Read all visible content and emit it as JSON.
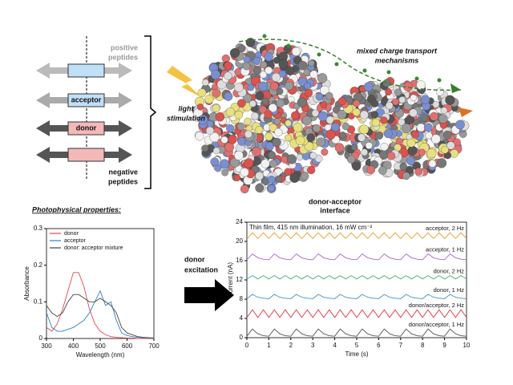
{
  "diagram": {
    "positive_peptides": [
      "positive",
      "peptides"
    ],
    "acceptor": "acceptor",
    "donor": "donor",
    "negative_peptides": [
      "negative",
      "peptides"
    ],
    "light_stimulation": [
      "light",
      "stimulation"
    ],
    "transport": [
      "mixed charge transport",
      "mechanisms"
    ],
    "interface": [
      "donor-acceptor",
      "interface"
    ],
    "section": "Photophysical properties:",
    "excitation": [
      "donor",
      "excitation"
    ]
  },
  "chart_data": [
    {
      "type": "line",
      "xlabel": "Wavelength (nm)",
      "ylabel": "Absorbance",
      "legend": "upper left",
      "x": [
        300,
        320,
        340,
        360,
        380,
        400,
        420,
        440,
        460,
        480,
        500,
        520,
        540,
        560,
        580,
        600,
        620,
        640,
        660,
        680,
        700
      ],
      "xlim": [
        300,
        700
      ],
      "xticks": [
        300,
        400,
        500,
        600,
        700
      ],
      "ylim": [
        0,
        0.3
      ],
      "yticks": [
        0,
        0.1,
        0.2,
        0.3
      ],
      "series": [
        {
          "name": "donor",
          "color": "#e8464a",
          "values": [
            0.03,
            0.02,
            0.04,
            0.08,
            0.13,
            0.18,
            0.18,
            0.14,
            0.08,
            0.04,
            0.02,
            0.01,
            0.005,
            0.003,
            0.002,
            0.001,
            0.001,
            0,
            0,
            0,
            0
          ]
        },
        {
          "name": "acceptor",
          "color": "#2f7fc8",
          "values": [
            0.07,
            0.03,
            0.02,
            0.02,
            0.025,
            0.03,
            0.04,
            0.05,
            0.07,
            0.1,
            0.13,
            0.09,
            0.1,
            0.05,
            0.015,
            0.008,
            0.005,
            0.003,
            0.002,
            0.001,
            0.001
          ]
        },
        {
          "name": "donor: acceptor mixture",
          "color": "#444444",
          "values": [
            0.09,
            0.07,
            0.06,
            0.07,
            0.1,
            0.12,
            0.12,
            0.11,
            0.1,
            0.1,
            0.11,
            0.1,
            0.09,
            0.07,
            0.03,
            0.015,
            0.01,
            0.005,
            0.003,
            0.002,
            0.001
          ]
        }
      ]
    },
    {
      "type": "line",
      "note": "Thin film, 415 nm illumination, 16 mW cm⁻²",
      "xlabel": "Time (s)",
      "ylabel": "Current (nA)",
      "legend": "inline",
      "x": [
        0,
        0.25,
        0.5,
        0.75,
        1,
        1.25,
        1.5,
        1.75,
        2,
        2.25,
        2.5,
        2.75,
        3,
        3.25,
        3.5,
        3.75,
        4,
        4.25,
        4.5,
        4.75,
        5,
        5.25,
        5.5,
        5.75,
        6,
        6.25,
        6.5,
        6.75,
        7,
        7.25,
        7.5,
        7.75,
        8,
        8.25,
        8.5,
        8.75,
        9,
        9.25,
        9.5,
        9.75,
        10
      ],
      "xlim": [
        0,
        10
      ],
      "xticks": [
        0,
        1,
        2,
        3,
        4,
        5,
        6,
        7,
        8,
        9,
        10
      ],
      "ylim": [
        0,
        24
      ],
      "yticks": [
        0,
        4,
        8,
        12,
        16,
        20,
        24
      ],
      "series": [
        {
          "name": "acceptor, 2 Hz",
          "color": "#e0a020",
          "values": [
            20.5,
            21.8,
            20.6,
            21.8,
            20.6,
            21.8,
            20.6,
            21.8,
            20.6,
            21.8,
            20.6,
            21.8,
            20.6,
            21.8,
            20.6,
            21.8,
            20.6,
            21.8,
            20.6,
            21.8,
            20.6,
            21.8,
            20.6,
            21.8,
            20.6,
            21.8,
            20.6,
            21.8,
            20.6,
            21.8,
            20.6,
            21.8,
            20.6,
            21.8,
            20.6,
            21.8,
            20.6,
            21.8,
            20.6,
            21.8,
            20.6
          ]
        },
        {
          "name": "acceptor, 1 Hz",
          "color": "#a864d0",
          "values": [
            16.2,
            17.4,
            16.6,
            16.3,
            16.2,
            17.4,
            16.6,
            16.3,
            16.2,
            17.4,
            16.6,
            16.3,
            16.2,
            17.4,
            16.6,
            16.3,
            16.2,
            17.4,
            16.6,
            16.3,
            16.2,
            17.4,
            16.6,
            16.3,
            16.2,
            17.4,
            16.6,
            16.3,
            16.2,
            17.4,
            16.6,
            16.3,
            16.2,
            17.4,
            16.6,
            16.3,
            16.2,
            17.4,
            16.6,
            16.3,
            16.2
          ]
        },
        {
          "name": "donor, 2 Hz",
          "color": "#3cb371",
          "values": [
            12.2,
            12.9,
            12.2,
            12.9,
            12.2,
            12.9,
            12.2,
            12.9,
            12.2,
            12.9,
            12.2,
            12.9,
            12.2,
            12.9,
            12.2,
            12.9,
            12.2,
            12.9,
            12.2,
            12.9,
            12.2,
            12.9,
            12.2,
            12.9,
            12.2,
            12.9,
            12.2,
            12.9,
            12.2,
            12.9,
            12.2,
            12.9,
            12.2,
            12.9,
            12.2,
            12.9,
            12.2,
            12.9,
            12.2,
            12.9,
            12.2
          ]
        },
        {
          "name": "donor, 1 Hz",
          "color": "#3a8fd0",
          "values": [
            8.1,
            9,
            8.4,
            8.2,
            8.1,
            9,
            8.4,
            8.2,
            8.1,
            9,
            8.4,
            8.2,
            8.1,
            9,
            8.4,
            8.2,
            8.1,
            9,
            8.4,
            8.2,
            8.1,
            9,
            8.4,
            8.2,
            8.1,
            9,
            8.4,
            8.2,
            8.1,
            9,
            8.4,
            8.2,
            8.1,
            9,
            8.4,
            8.2,
            8.1,
            9,
            8.4,
            8.2,
            8.1
          ]
        },
        {
          "name": "donor/acceptor, 2 Hz",
          "color": "#e04040",
          "values": [
            4.2,
            5.8,
            4.2,
            5.8,
            4.2,
            5.8,
            4.2,
            5.8,
            4.2,
            5.8,
            4.2,
            5.8,
            4.2,
            5.8,
            4.2,
            5.8,
            4.2,
            5.8,
            4.2,
            5.8,
            4.2,
            5.8,
            4.2,
            5.8,
            4.2,
            5.8,
            4.2,
            5.8,
            4.2,
            5.8,
            4.2,
            5.8,
            4.2,
            5.8,
            4.2,
            5.8,
            4.2,
            5.8,
            4.2,
            5.8,
            4.2
          ]
        },
        {
          "name": "donor/acceptor, 1 Hz",
          "color": "#555555",
          "values": [
            0.3,
            1.8,
            0.8,
            0.4,
            0.3,
            1.8,
            0.8,
            0.4,
            0.3,
            1.8,
            0.8,
            0.4,
            0.3,
            1.8,
            0.8,
            0.4,
            0.3,
            1.8,
            0.8,
            0.4,
            0.3,
            1.8,
            0.8,
            0.4,
            0.3,
            1.8,
            0.8,
            0.4,
            0.3,
            1.8,
            0.8,
            0.4,
            0.3,
            1.8,
            0.8,
            0.4,
            0.3,
            1.8,
            0.8,
            0.4,
            0.3
          ]
        }
      ]
    }
  ]
}
